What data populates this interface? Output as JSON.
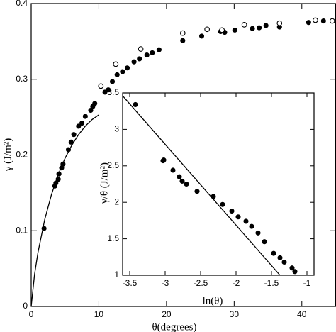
{
  "chart_data": [
    {
      "type": "scatter",
      "xlabel": "θ(degrees)",
      "ylabel": "γ (J/m²)",
      "xlim": [
        0,
        45
      ],
      "ylim": [
        0,
        0.4
      ],
      "xticks": [
        0,
        10,
        20,
        30,
        40
      ],
      "yticks": [
        0,
        0.1,
        0.2,
        0.3,
        0.4
      ],
      "series": [
        {
          "marker": "filled",
          "color": "#000000",
          "x": [
            1.9,
            3.5,
            3.65,
            4.0,
            4.1,
            4.5,
            4.7,
            5.5,
            5.9,
            6.3,
            7.0,
            7.5,
            8.0,
            8.8,
            9.1,
            9.4,
            10.9,
            11.4,
            12.0,
            12.7,
            13.5,
            14.2,
            15.2,
            16.0,
            17.1,
            17.9,
            18.9,
            22.4,
            25.2,
            28.0,
            28.6,
            30.1,
            32.7,
            33.7,
            34.7,
            36.7,
            41.0,
            43.2
          ],
          "values": [
            0.103,
            0.159,
            0.163,
            0.168,
            0.175,
            0.183,
            0.188,
            0.207,
            0.217,
            0.227,
            0.238,
            0.242,
            0.251,
            0.259,
            0.264,
            0.268,
            0.283,
            0.286,
            0.297,
            0.306,
            0.31,
            0.315,
            0.323,
            0.327,
            0.332,
            0.335,
            0.339,
            0.351,
            0.357,
            0.363,
            0.362,
            0.365,
            0.367,
            0.368,
            0.371,
            0.369,
            0.375,
            0.377
          ]
        },
        {
          "marker": "open",
          "color": "#000000",
          "x": [
            10.3,
            12.5,
            16.2,
            22.4,
            26.0,
            28.2,
            31.5,
            36.7,
            42.0,
            44.5
          ],
          "values": [
            0.291,
            0.32,
            0.34,
            0.361,
            0.366,
            0.365,
            0.372,
            0.374,
            0.378,
            0.377
          ]
        },
        {
          "marker": "line",
          "color": "#000000",
          "x": [
            0,
            0.5,
            1,
            2,
            3,
            4,
            5,
            6,
            7,
            8,
            9,
            10
          ],
          "values": [
            0,
            0.0425,
            0.0711,
            0.1147,
            0.1478,
            0.1742,
            0.1956,
            0.2129,
            0.2269,
            0.2381,
            0.2468,
            0.253
          ]
        }
      ]
    },
    {
      "type": "scatter",
      "xlabel": "ln(θ)",
      "ylabel": "γ/θ (J/m²)",
      "xlim": [
        -3.6,
        -0.9
      ],
      "ylim": [
        1,
        3.5
      ],
      "xticks": [
        -3.5,
        -3,
        -2.5,
        -2,
        -1.5,
        -1
      ],
      "yticks": [
        1,
        1.5,
        2,
        2.5,
        3,
        3.5
      ],
      "series": [
        {
          "marker": "filled",
          "color": "#000000",
          "x": [
            -3.42,
            -3.03,
            -3.02,
            -2.89,
            -2.8,
            -2.76,
            -2.7,
            -2.55,
            -2.32,
            -2.19,
            -2.06,
            -1.97,
            -1.86,
            -1.78,
            -1.69,
            -1.6,
            -1.47,
            -1.38,
            -1.32,
            -1.21,
            -1.17
          ],
          "values": [
            3.34,
            2.57,
            2.58,
            2.44,
            2.35,
            2.29,
            2.25,
            2.15,
            2.08,
            1.97,
            1.88,
            1.8,
            1.74,
            1.67,
            1.58,
            1.46,
            1.3,
            1.24,
            1.18,
            1.1,
            1.05
          ]
        },
        {
          "marker": "line",
          "color": "#000000",
          "x": [
            -3.6,
            -1.38
          ],
          "values": [
            3.46,
            1.0
          ]
        }
      ]
    }
  ]
}
